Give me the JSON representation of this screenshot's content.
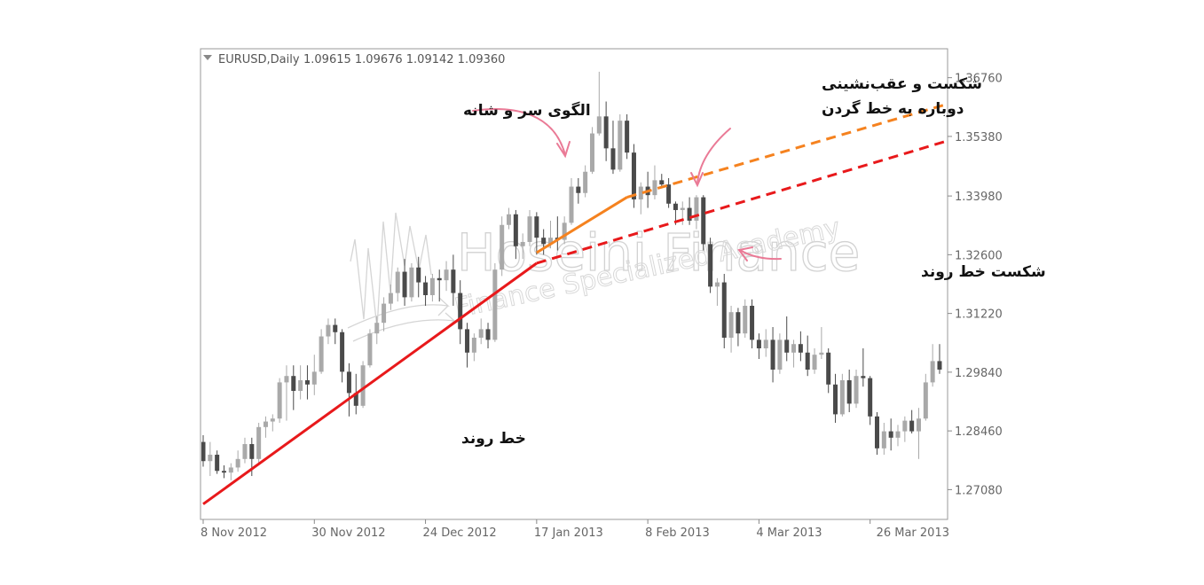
{
  "header": {
    "symbol": "EURUSD,Daily",
    "ohlc": "1.09615 1.09676 1.09142 1.09360"
  },
  "watermark": {
    "title": "Hoseini Finance",
    "subtitle": "Finance Specialized Academy"
  },
  "annotations": {
    "head_shoulders": "الگوی سر و شانه",
    "retest_line1": "شکست و عقب‌نشینی",
    "retest_line2": "دوباره به خط گردن",
    "trend_break": "شکست خط روند",
    "trend_line": "خط روند"
  },
  "colors": {
    "bull": "#a9a9a9",
    "bear": "#4a4a4a",
    "trendline": "#e8191b",
    "neckline": "#f5821f",
    "arrow": "#ea7a96",
    "axis": "#888888",
    "frame": "#9a9a9a"
  },
  "chart_data": {
    "type": "candlestick",
    "title": "",
    "xlabel": "",
    "ylabel": "",
    "ylim": [
      1.2638,
      1.3744
    ],
    "y_ticks": [
      "1.36760",
      "1.35380",
      "1.33980",
      "1.32600",
      "1.31220",
      "1.29840",
      "1.28460",
      "1.27080"
    ],
    "x_ticks": [
      {
        "label": "8 Nov 2012",
        "index": 0
      },
      {
        "label": "30 Nov 2012",
        "index": 16
      },
      {
        "label": "24 Dec 2012",
        "index": 32
      },
      {
        "label": "17 Jan 2013",
        "index": 48
      },
      {
        "label": "8 Feb 2013",
        "index": 64
      },
      {
        "label": "4 Mar 2013",
        "index": 80
      },
      {
        "label": "26 Mar 2013",
        "index": 96
      }
    ],
    "candles": [
      [
        1.282,
        1.2836,
        1.2762,
        1.2775
      ],
      [
        1.2775,
        1.282,
        1.274,
        1.279
      ],
      [
        1.279,
        1.28,
        1.2745,
        1.2752
      ],
      [
        1.2752,
        1.2765,
        1.2735,
        1.2748
      ],
      [
        1.2748,
        1.277,
        1.273,
        1.276
      ],
      [
        1.276,
        1.28,
        1.275,
        1.278
      ],
      [
        1.278,
        1.283,
        1.277,
        1.2815
      ],
      [
        1.2815,
        1.283,
        1.274,
        1.278
      ],
      [
        1.278,
        1.2865,
        1.277,
        1.2855
      ],
      [
        1.2855,
        1.288,
        1.283,
        1.2868
      ],
      [
        1.2868,
        1.2885,
        1.2845,
        1.2875
      ],
      [
        1.2875,
        1.297,
        1.2865,
        1.296
      ],
      [
        1.296,
        1.3,
        1.287,
        1.2975
      ],
      [
        1.2975,
        1.3,
        1.2895,
        1.294
      ],
      [
        1.294,
        1.3,
        1.292,
        1.2965
      ],
      [
        1.2965,
        1.3,
        1.292,
        1.2955
      ],
      [
        1.2955,
        1.3025,
        1.293,
        1.2985
      ],
      [
        1.2985,
        1.3085,
        1.298,
        1.3068
      ],
      [
        1.3068,
        1.311,
        1.305,
        1.3095
      ],
      [
        1.3095,
        1.311,
        1.305,
        1.3078
      ],
      [
        1.3078,
        1.3085,
        1.296,
        1.2985
      ],
      [
        1.2985,
        1.3005,
        1.288,
        1.2935
      ],
      [
        1.2935,
        1.298,
        1.2885,
        1.2905
      ],
      [
        1.2905,
        1.301,
        1.29,
        1.3
      ],
      [
        1.3,
        1.3085,
        1.2995,
        1.3075
      ],
      [
        1.3075,
        1.3115,
        1.305,
        1.31
      ],
      [
        1.31,
        1.316,
        1.308,
        1.3145
      ],
      [
        1.3145,
        1.319,
        1.313,
        1.317
      ],
      [
        1.317,
        1.323,
        1.315,
        1.322
      ],
      [
        1.322,
        1.325,
        1.314,
        1.316
      ],
      [
        1.316,
        1.324,
        1.315,
        1.323
      ],
      [
        1.323,
        1.3255,
        1.316,
        1.3195
      ],
      [
        1.3195,
        1.321,
        1.314,
        1.3165
      ],
      [
        1.3165,
        1.3215,
        1.315,
        1.3205
      ],
      [
        1.3205,
        1.3225,
        1.315,
        1.32
      ],
      [
        1.32,
        1.3245,
        1.3175,
        1.3225
      ],
      [
        1.3225,
        1.326,
        1.314,
        1.317
      ],
      [
        1.317,
        1.32,
        1.305,
        1.3085
      ],
      [
        1.3085,
        1.31,
        1.2995,
        1.303
      ],
      [
        1.303,
        1.3075,
        1.301,
        1.3065
      ],
      [
        1.3065,
        1.311,
        1.305,
        1.3085
      ],
      [
        1.3085,
        1.31,
        1.304,
        1.306
      ],
      [
        1.306,
        1.324,
        1.3055,
        1.3225
      ],
      [
        1.3225,
        1.335,
        1.321,
        1.333
      ],
      [
        1.333,
        1.337,
        1.332,
        1.3355
      ],
      [
        1.3355,
        1.3365,
        1.325,
        1.328
      ],
      [
        1.328,
        1.331,
        1.325,
        1.329
      ],
      [
        1.329,
        1.3365,
        1.328,
        1.335
      ],
      [
        1.335,
        1.336,
        1.326,
        1.33
      ],
      [
        1.33,
        1.332,
        1.326,
        1.3285
      ],
      [
        1.3285,
        1.334,
        1.3275,
        1.33
      ],
      [
        1.33,
        1.335,
        1.327,
        1.3295
      ],
      [
        1.3295,
        1.335,
        1.3285,
        1.3335
      ],
      [
        1.3335,
        1.344,
        1.333,
        1.342
      ],
      [
        1.342,
        1.344,
        1.338,
        1.3405
      ],
      [
        1.3405,
        1.347,
        1.3395,
        1.3455
      ],
      [
        1.3455,
        1.356,
        1.345,
        1.3545
      ],
      [
        1.3545,
        1.369,
        1.354,
        1.3585
      ],
      [
        1.3585,
        1.362,
        1.348,
        1.351
      ],
      [
        1.351,
        1.3575,
        1.345,
        1.346
      ],
      [
        1.346,
        1.359,
        1.3455,
        1.3575
      ],
      [
        1.3575,
        1.359,
        1.3485,
        1.35
      ],
      [
        1.35,
        1.352,
        1.337,
        1.339
      ],
      [
        1.339,
        1.343,
        1.3355,
        1.342
      ],
      [
        1.342,
        1.3455,
        1.337,
        1.34
      ],
      [
        1.34,
        1.347,
        1.339,
        1.3435
      ],
      [
        1.3435,
        1.345,
        1.342,
        1.3425
      ],
      [
        1.3425,
        1.344,
        1.337,
        1.338
      ],
      [
        1.338,
        1.3385,
        1.333,
        1.3365
      ],
      [
        1.3365,
        1.3385,
        1.333,
        1.337
      ],
      [
        1.337,
        1.3395,
        1.333,
        1.334
      ],
      [
        1.334,
        1.34,
        1.332,
        1.3395
      ],
      [
        1.3395,
        1.34,
        1.327,
        1.3285
      ],
      [
        1.3285,
        1.33,
        1.317,
        1.3185
      ],
      [
        1.3185,
        1.3205,
        1.314,
        1.3195
      ],
      [
        1.3195,
        1.3215,
        1.304,
        1.3065
      ],
      [
        1.3065,
        1.314,
        1.303,
        1.3125
      ],
      [
        1.3125,
        1.3135,
        1.3045,
        1.3075
      ],
      [
        1.3075,
        1.3155,
        1.3065,
        1.314
      ],
      [
        1.314,
        1.3155,
        1.304,
        1.306
      ],
      [
        1.306,
        1.3075,
        1.3015,
        1.304
      ],
      [
        1.304,
        1.3085,
        1.302,
        1.306
      ],
      [
        1.306,
        1.309,
        1.296,
        1.299
      ],
      [
        1.299,
        1.3075,
        1.298,
        1.306
      ],
      [
        1.306,
        1.3115,
        1.301,
        1.303
      ],
      [
        1.303,
        1.306,
        1.2995,
        1.305
      ],
      [
        1.305,
        1.308,
        1.301,
        1.303
      ],
      [
        1.303,
        1.307,
        1.2975,
        1.299
      ],
      [
        1.299,
        1.304,
        1.298,
        1.3025
      ],
      [
        1.3025,
        1.309,
        1.3015,
        1.303
      ],
      [
        1.303,
        1.304,
        1.2935,
        1.2955
      ],
      [
        1.2955,
        1.298,
        1.2865,
        1.2885
      ],
      [
        1.2885,
        1.298,
        1.288,
        1.2965
      ],
      [
        1.2965,
        1.299,
        1.289,
        1.291
      ],
      [
        1.291,
        1.299,
        1.29,
        1.2975
      ],
      [
        1.2975,
        1.304,
        1.295,
        1.297
      ],
      [
        1.297,
        1.2975,
        1.286,
        1.288
      ],
      [
        1.288,
        1.289,
        1.279,
        1.2805
      ],
      [
        1.2805,
        1.2865,
        1.279,
        1.2845
      ],
      [
        1.2845,
        1.2875,
        1.28,
        1.283
      ],
      [
        1.283,
        1.286,
        1.281,
        1.2845
      ],
      [
        1.2845,
        1.288,
        1.282,
        1.287
      ],
      [
        1.287,
        1.2895,
        1.284,
        1.2845
      ],
      [
        1.2845,
        1.29,
        1.278,
        1.2875
      ],
      [
        1.2875,
        1.298,
        1.287,
        1.296
      ],
      [
        1.296,
        1.305,
        1.295,
        1.301
      ],
      [
        1.301,
        1.305,
        1.298,
        1.299
      ]
    ],
    "trendline": {
      "from": [
        0,
        1.2674
      ],
      "to": [
        48,
        1.324
      ],
      "extend_to": [
        121,
        1.3595
      ]
    },
    "neckline": {
      "from": [
        48,
        1.3265
      ],
      "to": [
        61,
        1.3395
      ],
      "extend_to": [
        121,
        1.368
      ]
    }
  }
}
